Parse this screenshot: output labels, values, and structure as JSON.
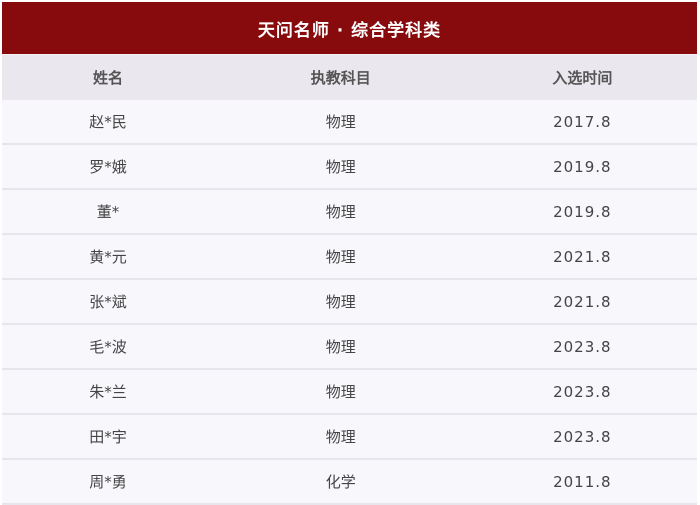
{
  "title": "天问名师 · 综合学科类",
  "columns": [
    "姓名",
    "执教科目",
    "入选时间"
  ],
  "rows": [
    [
      "赵*民",
      "物理",
      "2017.8"
    ],
    [
      "罗*娥",
      "物理",
      "2019.8"
    ],
    [
      "董*",
      "物理",
      "2019.8"
    ],
    [
      "黄*元",
      "物理",
      "2021.8"
    ],
    [
      "张*斌",
      "物理",
      "2021.8"
    ],
    [
      "毛*波",
      "物理",
      "2023.8"
    ],
    [
      "朱*兰",
      "物理",
      "2023.8"
    ],
    [
      "田*宇",
      "物理",
      "2023.8"
    ],
    [
      "周*勇",
      "化学",
      "2011.8"
    ]
  ],
  "colors": {
    "title_bar": "#870a0d",
    "header_bg": "#ebe7ee",
    "row_bg": "#f8f7fb"
  }
}
